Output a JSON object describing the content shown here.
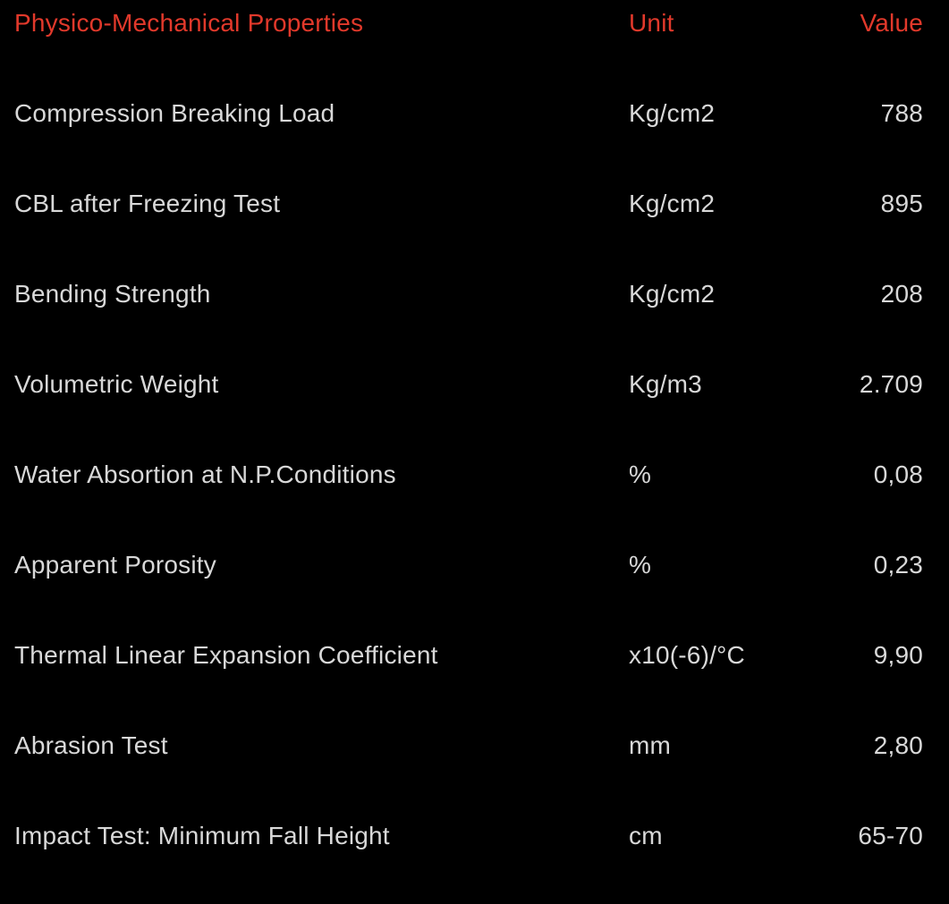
{
  "colors": {
    "background": "#000000",
    "header_accent": "#e2392b",
    "body_text": "#d8d8d8"
  },
  "table": {
    "header": {
      "property": "Physico-Mechanical Properties",
      "unit": "Unit",
      "value": "Value"
    },
    "rows": [
      {
        "property": "Compression Breaking Load",
        "unit": "Kg/cm2",
        "value": "788"
      },
      {
        "property": "CBL after Freezing Test",
        "unit": "Kg/cm2",
        "value": "895"
      },
      {
        "property": "Bending Strength",
        "unit": "Kg/cm2",
        "value": "208"
      },
      {
        "property": "Volumetric Weight",
        "unit": "Kg/m3",
        "value": "2.709"
      },
      {
        "property": "Water Absortion at N.P.Conditions",
        "unit": "%",
        "value": "0,08"
      },
      {
        "property": "Apparent Porosity",
        "unit": "%",
        "value": "0,23"
      },
      {
        "property": "Thermal Linear Expansion Coefficient",
        "unit": "x10(-6)/°C",
        "value": "9,90"
      },
      {
        "property": "Abrasion Test",
        "unit": "mm",
        "value": "2,80"
      },
      {
        "property": "Impact Test: Minimum Fall Height",
        "unit": "cm",
        "value": "65-70"
      }
    ]
  },
  "chart_data": {
    "type": "table",
    "title": "Physico-Mechanical Properties",
    "columns": [
      "Physico-Mechanical Properties",
      "Unit",
      "Value"
    ],
    "rows": [
      [
        "Compression Breaking Load",
        "Kg/cm2",
        "788"
      ],
      [
        "CBL after Freezing Test",
        "Kg/cm2",
        "895"
      ],
      [
        "Bending Strength",
        "Kg/cm2",
        "208"
      ],
      [
        "Volumetric Weight",
        "Kg/m3",
        "2.709"
      ],
      [
        "Water Absortion at N.P.Conditions",
        "%",
        "0,08"
      ],
      [
        "Apparent Porosity",
        "%",
        "0,23"
      ],
      [
        "Thermal Linear Expansion Coefficient",
        "x10(-6)/°C",
        "9,90"
      ],
      [
        "Abrasion Test",
        "mm",
        "2,80"
      ],
      [
        "Impact Test: Minimum Fall Height",
        "cm",
        "65-70"
      ]
    ],
    "layout": {
      "header_text_color": "#e2392b",
      "body_text_color": "#d8d8d8",
      "background": "#000000",
      "value_column_alignment": "right"
    }
  }
}
